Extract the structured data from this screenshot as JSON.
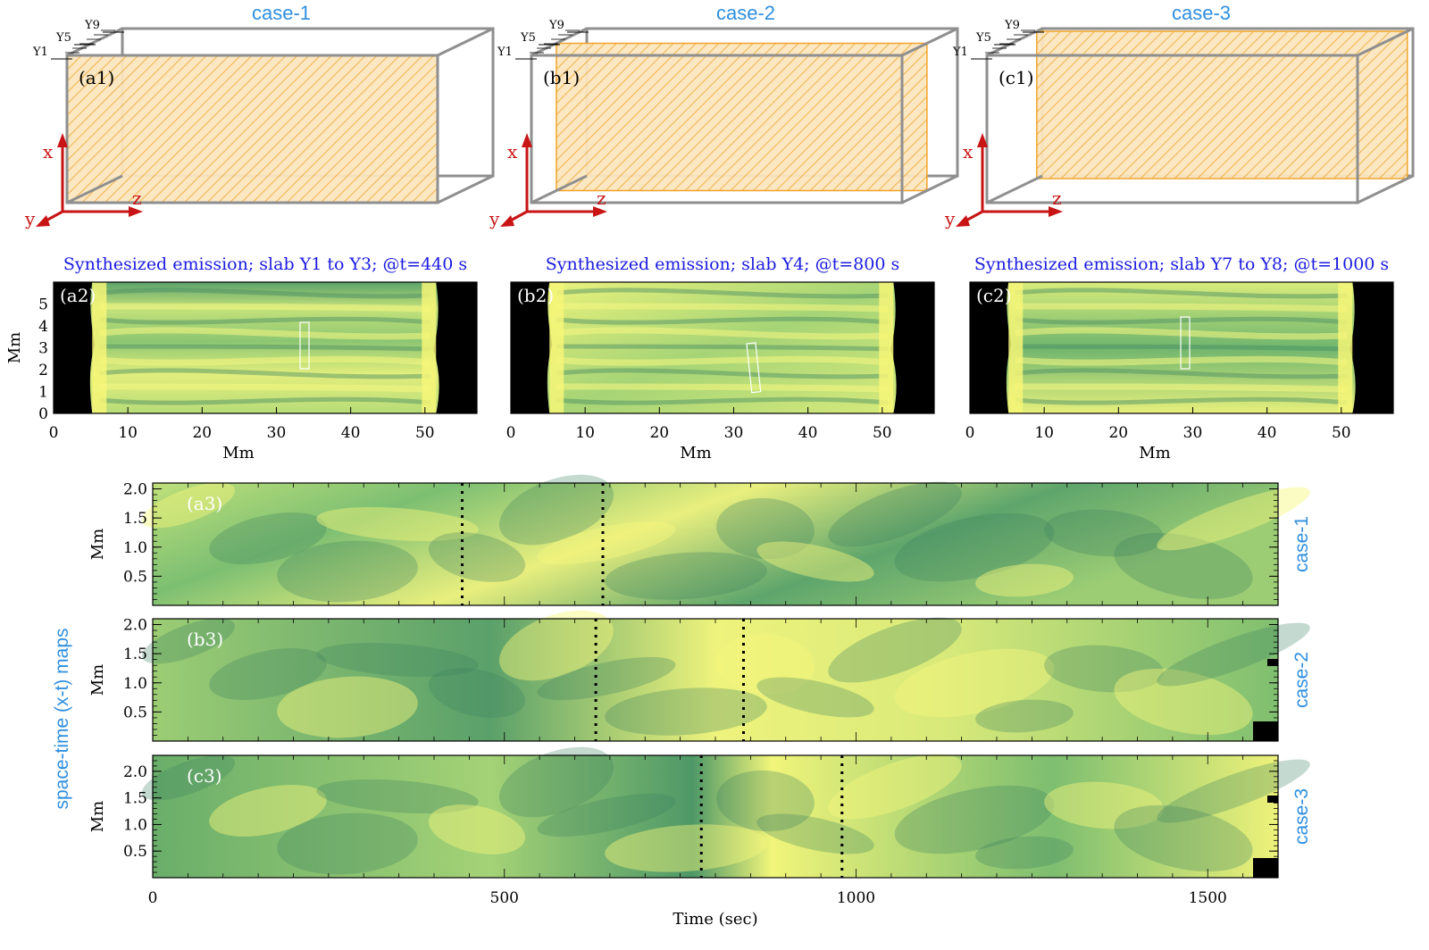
{
  "cases": [
    {
      "id": "case-1",
      "title": "case-1",
      "panel1": "(a1)",
      "panel2": "(a2)",
      "panel3": "(a3)",
      "emission_title": "Synthesized emission; slab Y1 to Y3;  @t=440 s"
    },
    {
      "id": "case-2",
      "title": "case-2",
      "panel1": "(b1)",
      "panel2": "(b2)",
      "panel3": "(b3)",
      "emission_title": "Synthesized emission; slab Y4;  @t=800 s"
    },
    {
      "id": "case-3",
      "title": "case-3",
      "panel1": "(c1)",
      "panel2": "(c2)",
      "panel3": "(c3)",
      "emission_title": "Synthesized emission; slab Y7 to Y8;  @t=1000 s"
    }
  ],
  "slab_labels": [
    "Y1",
    "Y5",
    "Y9"
  ],
  "axis_letters": {
    "x": "x",
    "y": "y",
    "z": "z"
  },
  "side_label": "space-time (x-t) maps",
  "colors": {
    "case_blue": "#2f8fe0",
    "emission_blue": "#1a1ae0",
    "axis_red": "#c81414",
    "box_gray": "#8f8f8f",
    "slab_orange": "#f0a020",
    "slab_fill": "#fbe6bf",
    "map_dark": "#1e6b5a",
    "map_light": "#f4f476"
  },
  "chart_data": [
    {
      "type": "heatmap",
      "title": "Synthesized emission; slab Y1 to Y3;  @t=440 s",
      "xlabel": "Mm",
      "ylabel": "Mm",
      "xlim": [
        0,
        57
      ],
      "ylim": [
        0,
        6
      ],
      "xticks": [
        0,
        10,
        20,
        30,
        40,
        50
      ],
      "yticks": [
        0,
        1,
        2,
        3,
        4,
        5
      ]
    },
    {
      "type": "heatmap",
      "title": "Synthesized emission; slab Y4;  @t=800 s",
      "xlabel": "Mm",
      "ylabel": "",
      "xlim": [
        0,
        57
      ],
      "xticks": [
        0,
        10,
        20,
        30,
        40,
        50
      ]
    },
    {
      "type": "heatmap",
      "title": "Synthesized emission; slab Y7 to Y8;  @t=1000 s",
      "xlabel": "Mm",
      "ylabel": "",
      "xlim": [
        0,
        57
      ],
      "xticks": [
        0,
        10,
        20,
        30,
        40,
        50
      ]
    },
    {
      "type": "heatmap",
      "title": "",
      "label": "case-1",
      "xlabel": "",
      "ylabel": "Mm",
      "xlim": [
        0,
        1600
      ],
      "ylim": [
        0,
        2.1
      ],
      "yticks": [
        0.5,
        1.0,
        1.5,
        2.0
      ],
      "vlines": [
        440,
        640
      ]
    },
    {
      "type": "heatmap",
      "title": "",
      "label": "case-2",
      "xlabel": "",
      "ylabel": "Mm",
      "xlim": [
        0,
        1600
      ],
      "ylim": [
        0,
        2.1
      ],
      "yticks": [
        0.5,
        1.0,
        1.5,
        2.0
      ],
      "vlines": [
        630,
        840
      ]
    },
    {
      "type": "heatmap",
      "title": "",
      "label": "case-3",
      "xlabel": "Time (sec)",
      "ylabel": "Mm",
      "xlim": [
        0,
        1600
      ],
      "ylim": [
        0,
        2.3
      ],
      "xticks": [
        0,
        500,
        1000,
        1500
      ],
      "yticks": [
        0.5,
        1.0,
        1.5,
        2.0
      ],
      "vlines": [
        780,
        980
      ]
    }
  ]
}
